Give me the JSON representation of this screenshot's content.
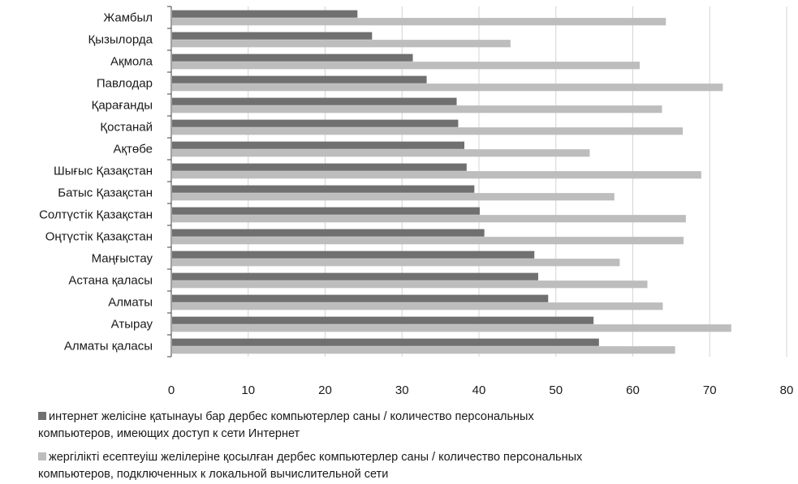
{
  "chart_data": {
    "type": "bar",
    "orientation": "horizontal",
    "categories": [
      "Жамбыл",
      "Қызылорда",
      "Ақмола",
      "Павлодар",
      "Қарағанды",
      "Қостанай",
      "Ақтөбе",
      "Шығыс Қазақстан",
      "Батыс Қазақстан",
      "Солтүстік Қазақстан",
      "Оңтүстік Қазақстан",
      "Маңғыстау",
      "Астана қаласы",
      "Алматы",
      "Атырау",
      "Алматы қаласы"
    ],
    "series": [
      {
        "name": "интернет желісіне қатынауы бар дербес компьютерлер саны / количество персональных компьютеров, имеющих доступ к сети Интернет",
        "legend_lines": [
          "интернет желісіне қатынауы бар дербес компьютерлер саны / количество персональных",
          "компьютеров, имеющих доступ к сети Интернет"
        ],
        "color": "#707070",
        "values": [
          24.2,
          26.1,
          31.4,
          33.2,
          37.1,
          37.3,
          38.1,
          38.4,
          39.4,
          40.1,
          40.7,
          47.2,
          47.7,
          49.0,
          54.9,
          55.6
        ]
      },
      {
        "name": "жергілікті есептеуіш желілеріне қосылған дербес компьютерлер саны / количество персональных компьютеров, подключенных к локальной вычислительной сети",
        "legend_lines": [
          "жергілікті есептеуіш желілеріне қосылған дербес компьютерлер саны / количество персональных",
          "компьютеров, подключенных к локальной вычислительной сети"
        ],
        "color": "#bdbdbd",
        "values": [
          64.3,
          44.1,
          60.9,
          71.7,
          63.8,
          66.5,
          54.4,
          68.9,
          57.6,
          66.9,
          66.6,
          58.3,
          61.9,
          63.9,
          72.8,
          65.5
        ]
      }
    ],
    "xlim": [
      0,
      80
    ],
    "xticks": [
      "0",
      "10",
      "20",
      "30",
      "40",
      "50",
      "60",
      "70",
      "80"
    ],
    "grid": "vertical",
    "legend_position": "bottom"
  }
}
